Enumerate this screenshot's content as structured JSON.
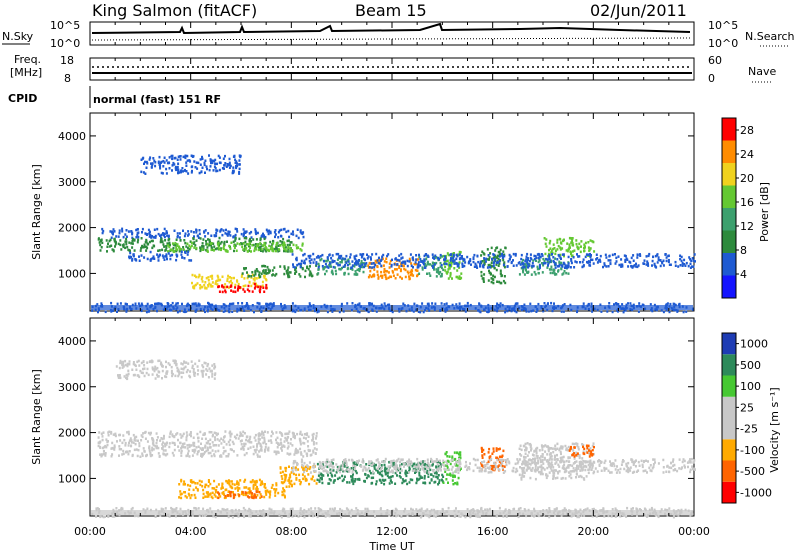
{
  "header": {
    "station": "King Salmon (fitACF)",
    "beam": "Beam 15",
    "date": "02/Jun/2011"
  },
  "noise_panel": {
    "left_label": "N.Sky",
    "right_label": "N.Search",
    "left_ticks": [
      "10^5",
      "10^0"
    ],
    "right_ticks": [
      "10^5",
      "10^0"
    ]
  },
  "freq_panel": {
    "left_label_1": "Freq.",
    "left_label_2": "[MHz]",
    "right_label": "Nave",
    "left_ticks": [
      "18",
      "8"
    ],
    "right_ticks": [
      "60",
      "0"
    ]
  },
  "cpid": {
    "label": "CPID",
    "value": "normal (fast) 151 RF"
  },
  "colors": {
    "power_scale": [
      "#1414ff",
      "#1e5ad2",
      "#2d8a3c",
      "#3ca06e",
      "#64c832",
      "#f0d21e",
      "#ff8c00",
      "#ff0000"
    ],
    "velocity_scale": [
      "#ff0000",
      "#ff6400",
      "#ffaa00",
      "#c8c8c8",
      "#c8c8c8",
      "#46c832",
      "#2d8a5a",
      "#1e3cb4"
    ]
  },
  "chart_data": [
    {
      "type": "heatmap",
      "name": "power",
      "ylabel": "Slant Range [km]",
      "xlabel": "",
      "ylim": [
        180,
        4500
      ],
      "yticks": [
        "1000",
        "2000",
        "3000",
        "4000"
      ],
      "yticks_values": [
        1000,
        2000,
        3000,
        4000
      ],
      "xlim": [
        0,
        24
      ],
      "colorbar_label": "Power [dB]",
      "colorbar_ticks": [
        "4",
        "8",
        "12",
        "16",
        "20",
        "24",
        "28"
      ],
      "colorbar_range": [
        0,
        30
      ],
      "blobs": [
        {
          "t0": 0.3,
          "t1": 8.5,
          "r0": 1800,
          "r1": 2000,
          "level": 5
        },
        {
          "t0": 0.3,
          "t1": 8.0,
          "r0": 1500,
          "r1": 1800,
          "level": 8
        },
        {
          "t0": 3.0,
          "t1": 8.5,
          "r0": 1500,
          "r1": 1700,
          "level": 16
        },
        {
          "t0": 1.5,
          "t1": 4.0,
          "r0": 1300,
          "r1": 1500,
          "level": 6
        },
        {
          "t0": 4.0,
          "t1": 7.0,
          "r0": 700,
          "r1": 1000,
          "level": 22
        },
        {
          "t0": 5.0,
          "t1": 7.0,
          "r0": 620,
          "r1": 800,
          "level": 28
        },
        {
          "t0": 6.0,
          "t1": 9.0,
          "r0": 950,
          "r1": 1200,
          "level": 10
        },
        {
          "t0": 9.0,
          "t1": 11.0,
          "r0": 1000,
          "r1": 1350,
          "level": 14
        },
        {
          "t0": 11.0,
          "t1": 13.0,
          "r0": 900,
          "r1": 1350,
          "level": 26
        },
        {
          "t0": 13.0,
          "t1": 14.0,
          "r0": 950,
          "r1": 1400,
          "level": 12
        },
        {
          "t0": 14.0,
          "t1": 14.8,
          "r0": 900,
          "r1": 1500,
          "level": 18
        },
        {
          "t0": 15.5,
          "t1": 16.5,
          "r0": 800,
          "r1": 1600,
          "level": 10
        },
        {
          "t0": 17.0,
          "t1": 19.0,
          "r0": 1000,
          "r1": 1350,
          "level": 14
        },
        {
          "t0": 18.0,
          "t1": 20.0,
          "r0": 1400,
          "r1": 1800,
          "level": 16
        },
        {
          "t0": 8.0,
          "t1": 24.0,
          "r0": 1150,
          "r1": 1450,
          "level": 5
        },
        {
          "t0": 2.0,
          "t1": 6.0,
          "r0": 3200,
          "r1": 3600,
          "level": 5
        },
        {
          "t0": 0.0,
          "t1": 24.0,
          "r0": 180,
          "r1": 380,
          "level": 6
        }
      ]
    },
    {
      "type": "heatmap",
      "name": "velocity",
      "ylabel": "Slant Range [km]",
      "xlabel": "Time UT",
      "ylim": [
        180,
        4500
      ],
      "yticks": [
        "1000",
        "2000",
        "3000",
        "4000"
      ],
      "yticks_values": [
        1000,
        2000,
        3000,
        4000
      ],
      "xlim": [
        0,
        24
      ],
      "xticks": [
        "00:00",
        "04:00",
        "08:00",
        "12:00",
        "16:00",
        "20:00",
        "00:00"
      ],
      "xticks_values": [
        0,
        4,
        8,
        12,
        16,
        20,
        24
      ],
      "colorbar_label": "Velocity  [m s⁻¹]",
      "colorbar_ticks": [
        "1000",
        "500",
        "100",
        "25",
        "-25",
        "-100",
        "-500",
        "-1000"
      ],
      "blobs": [
        {
          "t0": 0.3,
          "t1": 9.0,
          "r0": 1500,
          "r1": 2050,
          "level": 3
        },
        {
          "t0": 3.5,
          "t1": 8.0,
          "r0": 600,
          "r1": 1000,
          "level": 2
        },
        {
          "t0": 5.0,
          "t1": 7.0,
          "r0": 600,
          "r1": 750,
          "level": 1
        },
        {
          "t0": 7.5,
          "t1": 9.0,
          "r0": 900,
          "r1": 1300,
          "level": 2
        },
        {
          "t0": 9.0,
          "t1": 14.0,
          "r0": 900,
          "r1": 1400,
          "level": 6
        },
        {
          "t0": 14.0,
          "t1": 14.7,
          "r0": 900,
          "r1": 1600,
          "level": 5
        },
        {
          "t0": 15.5,
          "t1": 16.5,
          "r0": 1200,
          "r1": 1700,
          "level": 1
        },
        {
          "t0": 17.0,
          "t1": 20.0,
          "r0": 1000,
          "r1": 1800,
          "level": 3
        },
        {
          "t0": 19.0,
          "t1": 20.0,
          "r0": 1500,
          "r1": 1750,
          "level": 1
        },
        {
          "t0": 8.0,
          "t1": 24.0,
          "r0": 1150,
          "r1": 1450,
          "level": 3
        },
        {
          "t0": 1.0,
          "t1": 5.0,
          "r0": 3200,
          "r1": 3600,
          "level": 3
        },
        {
          "t0": 0.0,
          "t1": 24.0,
          "r0": 180,
          "r1": 380,
          "level": 3
        }
      ]
    }
  ]
}
